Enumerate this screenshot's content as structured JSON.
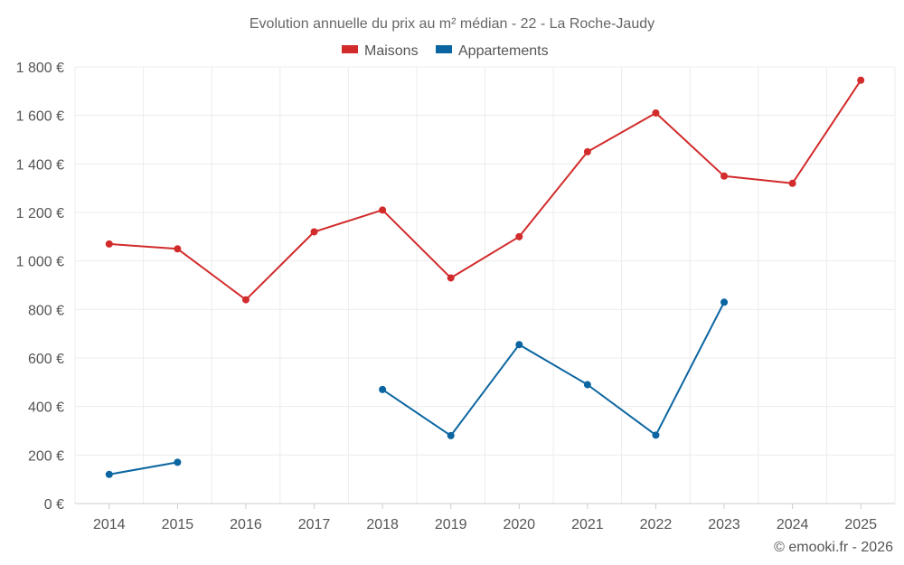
{
  "chart_data": {
    "type": "line",
    "title": "Evolution annuelle du prix au m² médian - 22 - La Roche-Jaudy",
    "categories": [
      "2014",
      "2015",
      "2016",
      "2017",
      "2018",
      "2019",
      "2020",
      "2021",
      "2022",
      "2023",
      "2024",
      "2025"
    ],
    "series": [
      {
        "name": "Maisons",
        "color": "#d22b2b",
        "values": [
          1070,
          1050,
          840,
          1120,
          1210,
          930,
          1100,
          1450,
          1610,
          1350,
          1320,
          1745
        ]
      },
      {
        "name": "Appartements",
        "color": "#0a65a0",
        "values": [
          120,
          170,
          null,
          null,
          470,
          280,
          655,
          490,
          282,
          830,
          null,
          null
        ]
      }
    ],
    "ylim": [
      0,
      1800
    ],
    "yticks": [
      0,
      200,
      400,
      600,
      800,
      1000,
      1200,
      1400,
      1600,
      1800
    ],
    "ytick_labels": [
      "0 €",
      "200 €",
      "400 €",
      "600 €",
      "800 €",
      "1 000 €",
      "1 200 €",
      "1 400 €",
      "1 600 €",
      "1 800 €"
    ],
    "grid": true,
    "legend_position": "top-center",
    "credit": "© emooki.fr - 2026"
  }
}
